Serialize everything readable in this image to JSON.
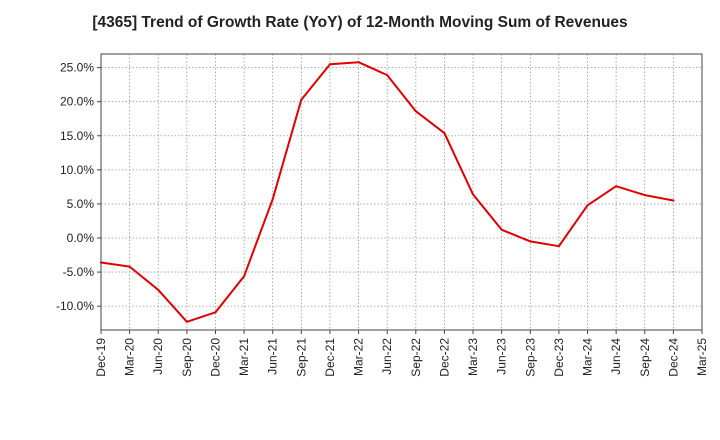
{
  "chart_data": {
    "type": "line",
    "title": "[4365]  Trend of Growth Rate (YoY) of 12-Month Moving Sum of Revenues",
    "xlabel": "",
    "ylabel": "",
    "ylim": [
      -13.5,
      27
    ],
    "y_ticks": [
      -10,
      -5,
      0,
      5,
      10,
      15,
      20,
      25
    ],
    "y_tick_labels": [
      "-10.0%",
      "-5.0%",
      "0.0%",
      "5.0%",
      "10.0%",
      "15.0%",
      "20.0%",
      "25.0%"
    ],
    "x_tick_labels": [
      "Dec-19",
      "Mar-20",
      "Jun-20",
      "Sep-20",
      "Dec-20",
      "Mar-21",
      "Jun-21",
      "Sep-21",
      "Dec-21",
      "Mar-22",
      "Jun-22",
      "Sep-22",
      "Dec-22",
      "Mar-23",
      "Jun-23",
      "Sep-23",
      "Dec-23",
      "Mar-24",
      "Jun-24",
      "Sep-24",
      "Dec-24",
      "Mar-25"
    ],
    "grid": true,
    "colors": {
      "line": "#e00000",
      "grid": "#999999",
      "axis": "#444444"
    },
    "series": [
      {
        "x": [
          "Dec-19",
          "Mar-20",
          "Jun-20",
          "Sep-20",
          "Dec-20",
          "Mar-21",
          "Jun-21",
          "Sep-21",
          "Dec-21",
          "Mar-22",
          "Jun-22",
          "Sep-22",
          "Dec-22",
          "Mar-23",
          "Jun-23",
          "Sep-23",
          "Dec-23",
          "Mar-24",
          "Jun-24",
          "Sep-24",
          "Dec-24"
        ],
        "values": [
          -3.6,
          -4.2,
          -7.6,
          -12.3,
          -10.9,
          -5.6,
          5.7,
          20.3,
          25.5,
          25.8,
          23.9,
          18.6,
          15.4,
          6.4,
          1.2,
          -0.5,
          -1.2,
          4.8,
          7.6,
          6.3,
          5.5
        ]
      }
    ]
  }
}
